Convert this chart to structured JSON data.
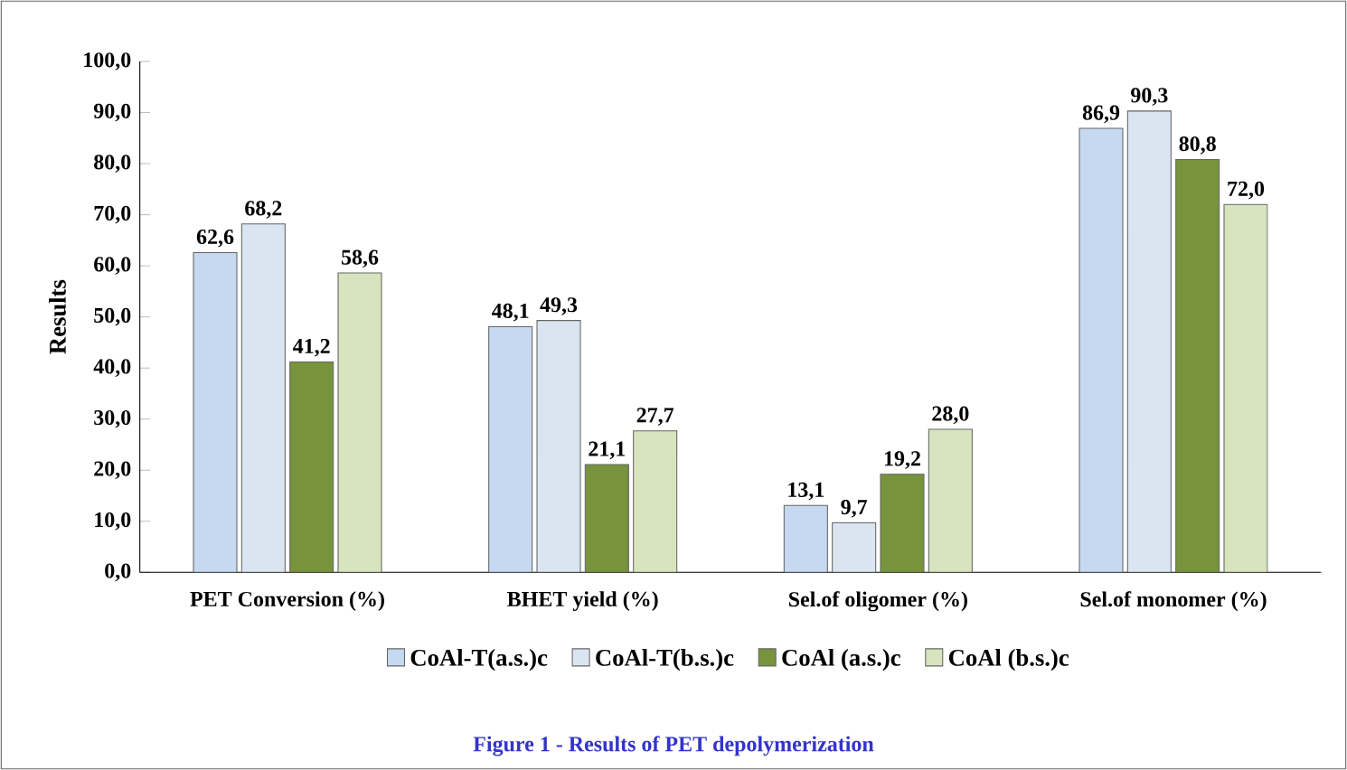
{
  "chart_data": {
    "type": "bar",
    "ylabel": "Results",
    "categories": [
      "PET Conversion (%)",
      "BHET yield (%)",
      "Sel.of oligomer (%)",
      "Sel.of monomer (%)"
    ],
    "series": [
      {
        "name": "CoAl-T(a.s.)c",
        "color": "#c6d9f0",
        "values": [
          62.6,
          48.1,
          13.1,
          86.9
        ],
        "value_labels": [
          "62,6",
          "48,1",
          "13,1",
          "86,9"
        ]
      },
      {
        "name": "CoAl-T(b.s.)c",
        "color": "#dbe5f1",
        "values": [
          68.2,
          49.3,
          9.7,
          90.3
        ],
        "value_labels": [
          "68,2",
          "49,3",
          "9,7",
          "90,3"
        ]
      },
      {
        "name": "CoAl (a.s.)c",
        "color": "#77933c",
        "values": [
          41.2,
          21.1,
          19.2,
          80.8
        ],
        "value_labels": [
          "41,2",
          "21,1",
          "19,2",
          "80,8"
        ]
      },
      {
        "name": "CoAl (b.s.)c",
        "color": "#d7e4bd",
        "values": [
          58.6,
          27.7,
          28.0,
          72.0
        ],
        "value_labels": [
          "58,6",
          "27,7",
          "28,0",
          "72,0"
        ]
      }
    ],
    "ylim": [
      0,
      100
    ],
    "yticks": [
      {
        "value": 0,
        "label": "0,0"
      },
      {
        "value": 10,
        "label": "10,0"
      },
      {
        "value": 20,
        "label": "20,0"
      },
      {
        "value": 30,
        "label": "30,0"
      },
      {
        "value": 40,
        "label": "40,0"
      },
      {
        "value": 50,
        "label": "50,0"
      },
      {
        "value": 60,
        "label": "60,0"
      },
      {
        "value": 70,
        "label": "70,0"
      },
      {
        "value": 80,
        "label": "80,0"
      },
      {
        "value": 90,
        "label": "90,0"
      },
      {
        "value": 100,
        "label": "100,0"
      }
    ],
    "grid": false,
    "legend": "bottom",
    "annotations": [
      "Figure 1 - Results of PET depolymerization"
    ]
  }
}
